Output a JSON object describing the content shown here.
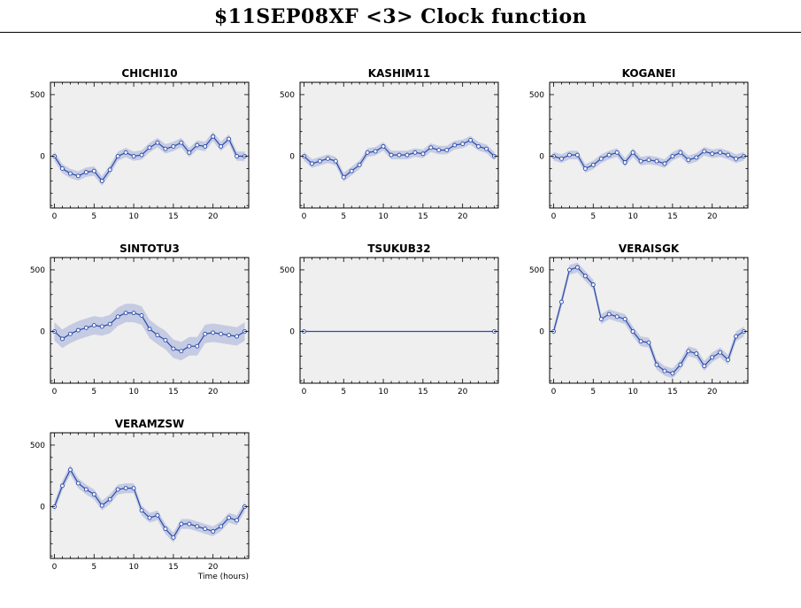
{
  "page": {
    "title": "$11SEP08XF <3>  Clock function"
  },
  "colors": {
    "line": "#2a4aaa",
    "band": "#c5cbe2",
    "panel_bg": "#efefef",
    "frame": "#000000"
  },
  "chart_data": [
    {
      "type": "line",
      "title": "CHICHI10",
      "xlim": [
        -0.5,
        24.5
      ],
      "ylim": [
        -420,
        600
      ],
      "x_ticks": [
        0,
        5,
        10,
        15,
        20
      ],
      "y_ticks": [
        0,
        500
      ],
      "xlabel": "",
      "x": [
        0,
        1,
        2,
        3,
        4,
        5,
        6,
        7,
        8,
        9,
        10,
        11,
        12,
        13,
        14,
        15,
        16,
        17,
        18,
        19,
        20,
        21,
        22,
        23,
        24
      ],
      "y": [
        0,
        -100,
        -140,
        -160,
        -130,
        -120,
        -200,
        -110,
        0,
        30,
        0,
        10,
        70,
        110,
        60,
        80,
        110,
        30,
        90,
        80,
        160,
        80,
        140,
        0,
        0
      ],
      "err": 38
    },
    {
      "type": "line",
      "title": "KASHIM11",
      "xlim": [
        -0.5,
        24.5
      ],
      "ylim": [
        -420,
        600
      ],
      "x_ticks": [
        0,
        5,
        10,
        15,
        20
      ],
      "y_ticks": [
        0,
        500
      ],
      "xlabel": "",
      "x": [
        0,
        1,
        2,
        3,
        4,
        5,
        6,
        7,
        8,
        9,
        10,
        11,
        12,
        13,
        14,
        15,
        16,
        17,
        18,
        19,
        20,
        21,
        22,
        23,
        24
      ],
      "y": [
        0,
        -60,
        -40,
        -20,
        -40,
        -170,
        -120,
        -70,
        30,
        40,
        80,
        10,
        10,
        10,
        30,
        20,
        70,
        50,
        50,
        90,
        100,
        130,
        80,
        60,
        0
      ],
      "err": 35
    },
    {
      "type": "line",
      "title": "KOGANEI",
      "xlim": [
        -0.5,
        24.5
      ],
      "ylim": [
        -420,
        600
      ],
      "x_ticks": [
        0,
        5,
        10,
        15,
        20
      ],
      "y_ticks": [
        0,
        500
      ],
      "xlabel": "",
      "x": [
        0,
        1,
        2,
        3,
        4,
        5,
        6,
        7,
        8,
        9,
        10,
        11,
        12,
        13,
        14,
        15,
        16,
        17,
        18,
        19,
        20,
        21,
        22,
        23,
        24
      ],
      "y": [
        0,
        -20,
        10,
        10,
        -100,
        -70,
        -20,
        10,
        30,
        -50,
        30,
        -40,
        -30,
        -40,
        -60,
        0,
        30,
        -30,
        -10,
        40,
        20,
        30,
        10,
        -20,
        0
      ],
      "err": 35
    },
    {
      "type": "line",
      "title": "SINTOTU3",
      "xlim": [
        -0.5,
        24.5
      ],
      "ylim": [
        -420,
        600
      ],
      "x_ticks": [
        0,
        5,
        10,
        15,
        20
      ],
      "y_ticks": [
        0,
        500
      ],
      "xlabel": "",
      "x": [
        0,
        1,
        2,
        3,
        4,
        5,
        6,
        7,
        8,
        9,
        10,
        11,
        12,
        13,
        14,
        15,
        16,
        17,
        18,
        19,
        20,
        21,
        22,
        23,
        24
      ],
      "y": [
        0,
        -60,
        -20,
        10,
        30,
        50,
        40,
        60,
        120,
        150,
        150,
        130,
        20,
        -30,
        -70,
        -140,
        -160,
        -120,
        -120,
        -20,
        -10,
        -20,
        -30,
        -40,
        0
      ],
      "err": 75
    },
    {
      "type": "line",
      "title": "TSUKUB32",
      "xlim": [
        -0.5,
        24.5
      ],
      "ylim": [
        -420,
        600
      ],
      "x_ticks": [
        0,
        5,
        10,
        15,
        20
      ],
      "y_ticks": [
        0,
        500
      ],
      "xlabel": "",
      "x": [
        0,
        24
      ],
      "y": [
        0,
        0
      ],
      "err": 0
    },
    {
      "type": "line",
      "title": "VERAISGK",
      "xlim": [
        -0.5,
        24.5
      ],
      "ylim": [
        -420,
        600
      ],
      "x_ticks": [
        0,
        5,
        10,
        15,
        20
      ],
      "y_ticks": [
        0,
        500
      ],
      "xlabel": "",
      "x": [
        0,
        1,
        2,
        3,
        4,
        5,
        6,
        7,
        8,
        9,
        10,
        11,
        12,
        13,
        14,
        15,
        16,
        17,
        18,
        19,
        20,
        21,
        22,
        23,
        24
      ],
      "y": [
        0,
        240,
        500,
        520,
        450,
        380,
        100,
        140,
        120,
        100,
        0,
        -80,
        -90,
        -270,
        -320,
        -340,
        -270,
        -160,
        -180,
        -280,
        -210,
        -170,
        -230,
        -40,
        0
      ],
      "err": 40
    },
    {
      "type": "line",
      "title": "VERAMZSW",
      "xlim": [
        -0.5,
        24.5
      ],
      "ylim": [
        -420,
        600
      ],
      "x_ticks": [
        0,
        5,
        10,
        15,
        20
      ],
      "y_ticks": [
        0,
        500
      ],
      "xlabel": "Time (hours)",
      "x": [
        0,
        1,
        2,
        3,
        4,
        5,
        6,
        7,
        8,
        9,
        10,
        11,
        12,
        13,
        14,
        15,
        16,
        17,
        18,
        19,
        20,
        21,
        22,
        23,
        24
      ],
      "y": [
        0,
        170,
        300,
        190,
        140,
        100,
        10,
        60,
        140,
        150,
        150,
        -30,
        -90,
        -70,
        -180,
        -250,
        -140,
        -140,
        -160,
        -180,
        -200,
        -160,
        -90,
        -110,
        0
      ],
      "err": 40
    }
  ]
}
